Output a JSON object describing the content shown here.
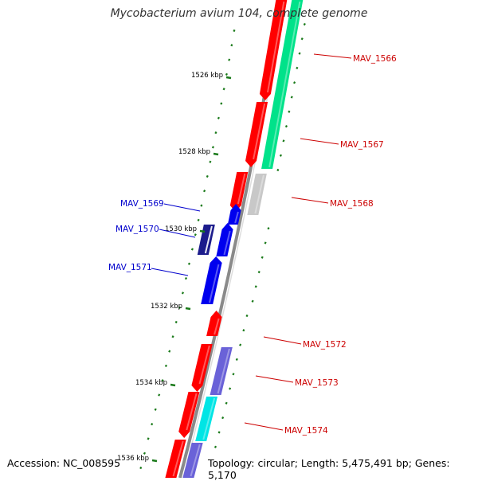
{
  "title": "Mycobacterium avium 104, complete genome",
  "footer": {
    "accession": "Accession: NC_008595",
    "topology": "Topology: circular; Length: 5,475,491 bp; Genes: 5,170"
  },
  "colors": {
    "backbone": "#8a8a8a",
    "tick": "#1a7a1a",
    "forward_label": "#cc0000",
    "reverse_label": "#0000cc",
    "red": "#ff0000",
    "green": "#00e28a",
    "gray": "#c8c8c8",
    "blue": "#0000ee",
    "navy": "#1c1c8c",
    "lavender": "#6a62d8",
    "cyan": "#00e5e5"
  },
  "scale_labels": [
    {
      "label": "1526 kbp"
    },
    {
      "label": "1528 kbp"
    },
    {
      "label": "1530 kbp"
    },
    {
      "label": "1532 kbp"
    },
    {
      "label": "1534 kbp"
    },
    {
      "label": "1536 kbp"
    }
  ],
  "gene_labels": [
    {
      "name": "MAV_1566",
      "strand": "forward"
    },
    {
      "name": "MAV_1567",
      "strand": "forward"
    },
    {
      "name": "MAV_1568",
      "strand": "forward"
    },
    {
      "name": "MAV_1569",
      "strand": "reverse"
    },
    {
      "name": "MAV_1570",
      "strand": "reverse"
    },
    {
      "name": "MAV_1571",
      "strand": "reverse"
    },
    {
      "name": "MAV_1572",
      "strand": "forward"
    },
    {
      "name": "MAV_1573",
      "strand": "forward"
    },
    {
      "name": "MAV_1574",
      "strand": "forward"
    }
  ]
}
